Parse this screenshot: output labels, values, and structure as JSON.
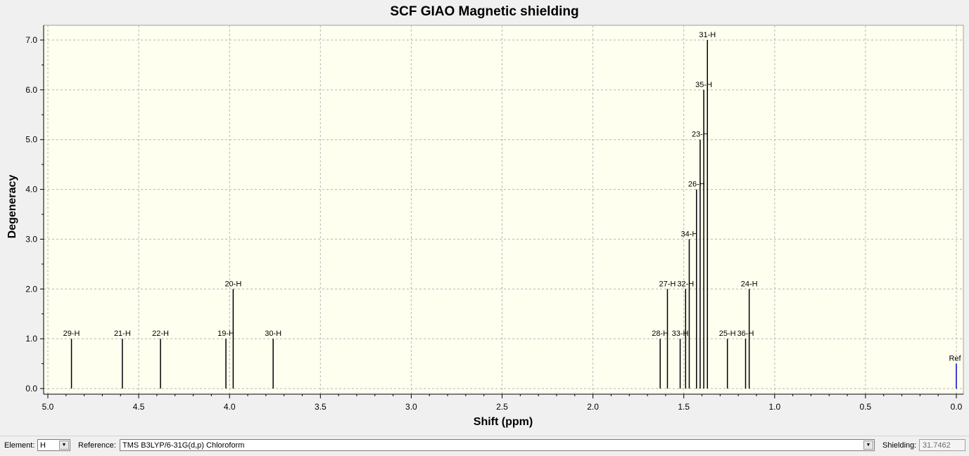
{
  "chart_data": {
    "type": "bar",
    "title": "SCF GIAO Magnetic shielding",
    "xlabel": "Shift (ppm)",
    "ylabel": "Degeneracy",
    "xlim": [
      5.0,
      0.0
    ],
    "ylim": [
      0.0,
      7.2
    ],
    "x_reversed": true,
    "x_ticks": [
      "5.0",
      "4.5",
      "4.0",
      "3.5",
      "3.0",
      "2.5",
      "2.0",
      "1.5",
      "1.0",
      "0.5",
      "0.0"
    ],
    "y_ticks": [
      "0.0",
      "1.0",
      "2.0",
      "3.0",
      "4.0",
      "5.0",
      "6.0",
      "7.0"
    ],
    "grid": true,
    "peaks": [
      {
        "label": "29-H",
        "x": 4.87,
        "y": 1
      },
      {
        "label": "21-H",
        "x": 4.59,
        "y": 1
      },
      {
        "label": "22-H",
        "x": 4.38,
        "y": 1
      },
      {
        "label": "19-H",
        "x": 4.02,
        "y": 1
      },
      {
        "label": "20-H",
        "x": 3.98,
        "y": 2
      },
      {
        "label": "30-H",
        "x": 3.76,
        "y": 1
      },
      {
        "label": "28-H",
        "x": 1.63,
        "y": 1
      },
      {
        "label": "27-H",
        "x": 1.59,
        "y": 2
      },
      {
        "label": "33-H",
        "x": 1.52,
        "y": 1
      },
      {
        "label": "32-H",
        "x": 1.49,
        "y": 2
      },
      {
        "label": "34-H",
        "x": 1.47,
        "y": 3
      },
      {
        "label": "26-H",
        "x": 1.43,
        "y": 4
      },
      {
        "label": "23-H",
        "x": 1.41,
        "y": 5
      },
      {
        "label": "35-H",
        "x": 1.39,
        "y": 6
      },
      {
        "label": "31-H",
        "x": 1.37,
        "y": 7
      },
      {
        "label": "25-H",
        "x": 1.26,
        "y": 1
      },
      {
        "label": "36-H",
        "x": 1.16,
        "y": 1
      },
      {
        "label": "24-H",
        "x": 1.14,
        "y": 2
      }
    ],
    "reference": {
      "label": "Ref",
      "x": 0.0,
      "y": 0.5,
      "color": "#0000cc"
    }
  },
  "toolbar": {
    "element_label": "Element:",
    "element_value": "H",
    "reference_label": "Reference:",
    "reference_value": "TMS B3LYP/6-31G(d,p) Chloroform",
    "shielding_label": "Shielding:",
    "shielding_value": "31.7462"
  }
}
